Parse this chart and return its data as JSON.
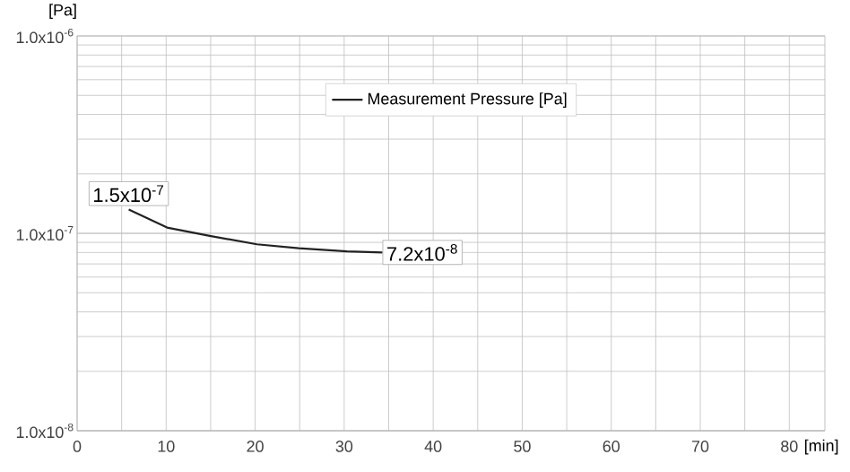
{
  "chart_data": {
    "type": "line",
    "xlabel": "[min]",
    "ylabel": "[Pa]",
    "log": "y",
    "grid": true,
    "legend": "top",
    "marker": "none",
    "line_style": "solid",
    "xlim": [
      0,
      84
    ],
    "xticks": [
      0,
      10,
      20,
      30,
      40,
      50,
      60,
      70,
      80
    ],
    "ylim": [
      1e-08,
      1e-06
    ],
    "yticks": [
      {
        "value": 1e-08,
        "label": "1.0x10$^{-8}$"
      },
      {
        "value": 1e-07,
        "label": "1.0x10$^{-7}$"
      },
      {
        "value": 1e-06,
        "label": "1.0x10$^{-6}$"
      }
    ],
    "series": [
      {
        "name": "Measurement Pressure [Pa]",
        "color": "#222222",
        "x": [
          5.8,
          10.1,
          14.9,
          20.2,
          24.9,
          30.3,
          34.3
        ],
        "values": [
          1.32e-07,
          1.07e-07,
          9.7e-08,
          8.8e-08,
          8.4e-08,
          8.1e-08,
          8e-08
        ]
      }
    ],
    "annotations": [
      "1.5x10$^{-7}$",
      "7.2x10$^{-8}$"
    ]
  }
}
